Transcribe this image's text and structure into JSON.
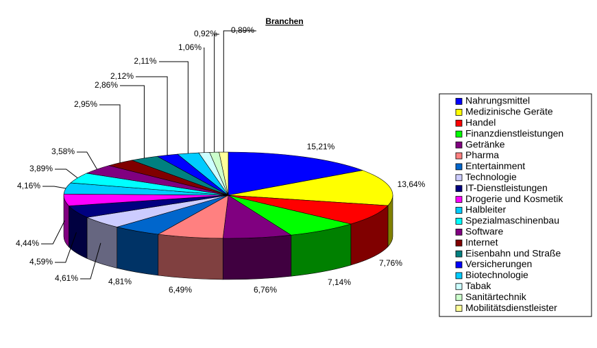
{
  "chart_data": {
    "type": "pie3d",
    "title": "Branchen",
    "categories": [
      "Nahrungsmittel",
      "Medizinische Geräte",
      "Handel",
      "Finanzdienstleistungen",
      "Getränke",
      "Pharma",
      "Entertainment",
      "Technologie",
      "IT-Dienstleistungen",
      "Drogerie und Kosmetik",
      "Halbleiter",
      "Spezialmaschinenbau",
      "Software",
      "Internet",
      "Eisenbahn und Straße",
      "Versicherungen",
      "Biotechnologie",
      "Tabak",
      "Sanitärtechnik",
      "Mobilitätsdienstleister"
    ],
    "values": [
      15.21,
      13.64,
      7.76,
      7.14,
      6.76,
      6.49,
      4.81,
      4.61,
      4.59,
      4.44,
      4.16,
      3.89,
      3.58,
      2.95,
      2.86,
      2.12,
      2.11,
      1.06,
      0.92,
      0.89
    ],
    "value_labels": [
      "15,21%",
      "13,64%",
      "7,76%",
      "7,14%",
      "6,76%",
      "6,49%",
      "4,81%",
      "4,61%",
      "4,59%",
      "4,44%",
      "4,16%",
      "3,89%",
      "3,58%",
      "2,95%",
      "2,86%",
      "2,12%",
      "2,11%",
      "1,06%",
      "0,92%",
      "0,89%"
    ],
    "colors": [
      "#0000ff",
      "#ffff00",
      "#ff0000",
      "#00ff00",
      "#800080",
      "#ff8080",
      "#0066cc",
      "#ccccff",
      "#000080",
      "#ff00ff",
      "#00ccff",
      "#00ffff",
      "#800080",
      "#800000",
      "#008080",
      "#0000ff",
      "#00ccff",
      "#ccffff",
      "#ccffcc",
      "#ffff99"
    ]
  }
}
